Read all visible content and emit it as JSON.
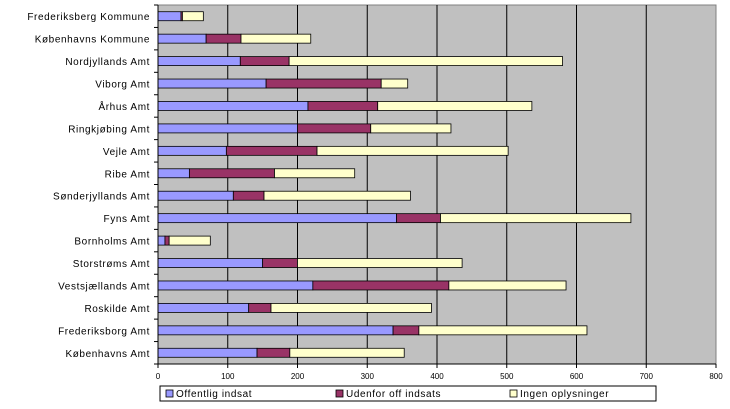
{
  "chart_data": {
    "type": "bar",
    "orientation": "horizontal",
    "stacked": true,
    "title": "",
    "xlabel": "",
    "ylabel": "",
    "xlim": [
      0,
      800
    ],
    "x_ticks": [
      0,
      100,
      200,
      300,
      400,
      500,
      600,
      700,
      800
    ],
    "grid": "vertical",
    "plot_background": "#c0c0c0",
    "legend_position": "bottom",
    "categories": [
      "Frederiksberg Kommune",
      "Københavns Kommune",
      "Nordjyllands Amt",
      "Viborg Amt",
      "Århus Amt",
      "Ringkjøbing Amt",
      "Vejle Amt",
      "Ribe Amt",
      "Sønderjyllands Amt",
      "Fyns Amt",
      "Bornholms Amt",
      "Storstrøms Amt",
      "Vestsjællands Amt",
      "Roskilde Amt",
      "Frederiksborg Amt",
      "Københavns Amt"
    ],
    "series": [
      {
        "name": "Offentlig indsat",
        "color": "#9999ff",
        "values": [
          33,
          69,
          118,
          155,
          215,
          200,
          98,
          45,
          108,
          342,
          10,
          150,
          222,
          130,
          337,
          142
        ]
      },
      {
        "name": "Udenfor off indsats",
        "color": "#993366",
        "values": [
          2,
          50,
          70,
          165,
          100,
          105,
          130,
          122,
          44,
          63,
          6,
          50,
          195,
          32,
          37,
          47
        ]
      },
      {
        "name": "Ingen oplysninger",
        "color": "#ffffcc",
        "values": [
          30,
          100,
          392,
          38,
          221,
          115,
          274,
          115,
          210,
          273,
          59,
          236,
          168,
          230,
          241,
          164
        ]
      }
    ]
  }
}
